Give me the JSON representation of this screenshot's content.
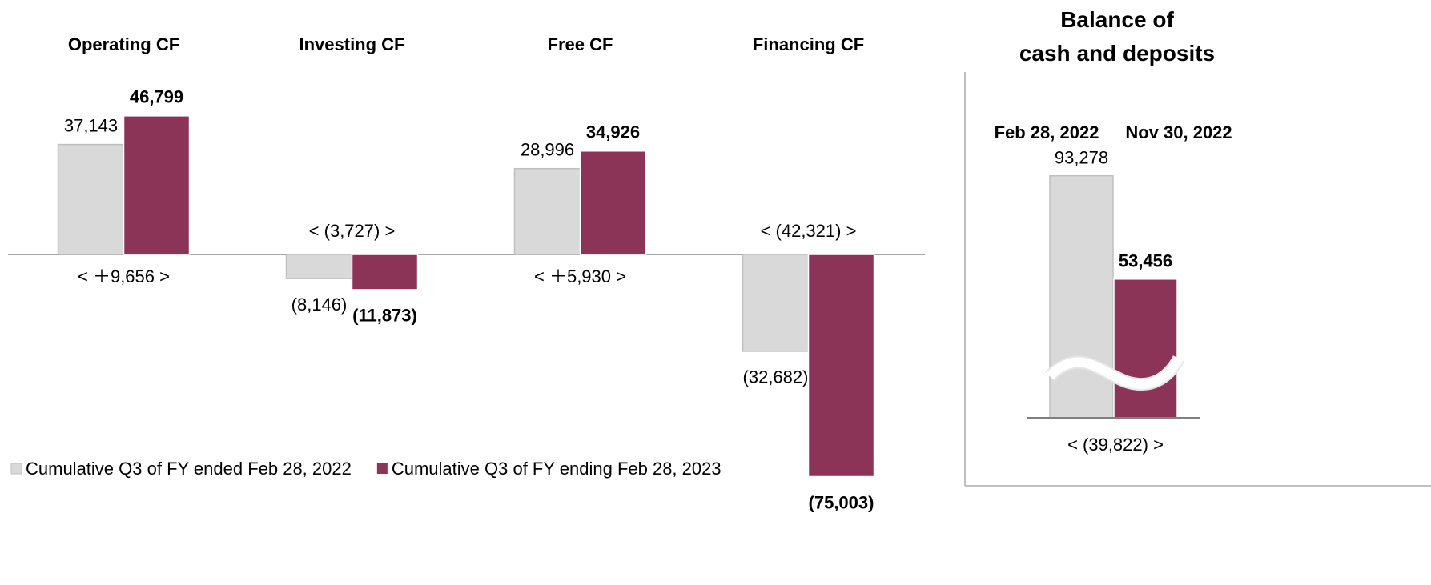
{
  "chart_data": [
    {
      "type": "bar",
      "categories": [
        "Operating CF",
        "Investing CF",
        "Free CF",
        "Financing CF"
      ],
      "series": [
        {
          "name": "Cumulative Q3 of FY ended Feb 28, 2022",
          "color": "#d9d9d9",
          "values": [
            37143,
            -8146,
            28996,
            -32682
          ],
          "value_labels": [
            "37,143",
            "(8,146)",
            "28,996",
            "(32,682)"
          ]
        },
        {
          "name": "Cumulative Q3 of FY ending Feb 28, 2023",
          "color": "#8c3358",
          "values": [
            46799,
            -11873,
            34926,
            -75003
          ],
          "value_labels": [
            "46,799",
            "(11,873)",
            "34,926",
            "(75,003)"
          ]
        }
      ],
      "annotations": [
        "< ＋9,656 >",
        "< (3,727) >",
        "< ＋5,930 >",
        "< (42,321) >"
      ],
      "ylim": [
        -80000,
        50000
      ]
    },
    {
      "type": "bar",
      "title": "Balance of\ncash and deposits",
      "categories": [
        "Feb 28, 2022",
        "Nov 30, 2022"
      ],
      "values": [
        93278,
        53456
      ],
      "value_labels": [
        "93,278",
        "53,456"
      ],
      "colors": [
        "#d9d9d9",
        "#8c3358"
      ],
      "annotations": [
        "< (39,822) >"
      ],
      "axis_break": true,
      "ylim": [
        0,
        100000
      ]
    }
  ]
}
